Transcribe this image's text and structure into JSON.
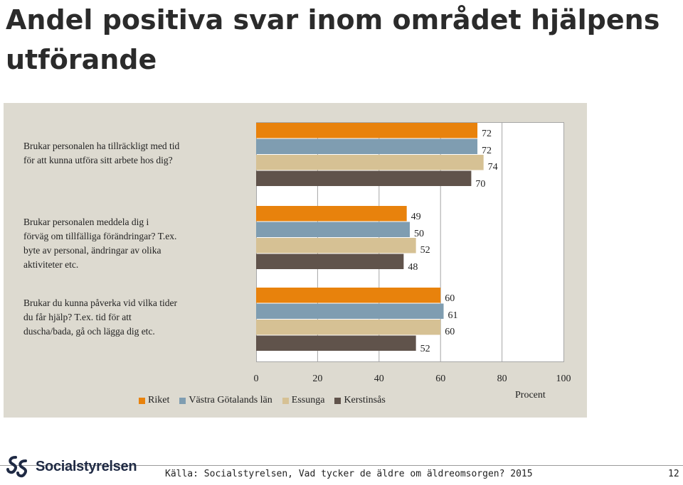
{
  "title": "Andel positiva svar inom området hjälpens utförande",
  "chart_data": {
    "type": "bar",
    "orientation": "horizontal",
    "categories": [
      "Brukar personalen ha tillräckligt med tid\nför att kunna utföra sitt arbete hos dig?",
      "Brukar personalen meddela dig i\nförväg om tillfälliga förändringar? T.ex.\nbyte av personal, ändringar av olika\naktiviteter etc.",
      "Brukar du kunna påverka vid vilka tider\ndu får hjälp? T.ex. tid för att\nduscha/bada, gå och lägga dig etc."
    ],
    "series": [
      {
        "name": "Riket",
        "color": "#e8820c",
        "values": [
          72,
          49,
          60
        ]
      },
      {
        "name": "Västra Götalands län",
        "color": "#7f9db1",
        "values": [
          72,
          50,
          61
        ]
      },
      {
        "name": "Essunga",
        "color": "#d6c194",
        "values": [
          74,
          52,
          60
        ]
      },
      {
        "name": "Kerstinsås",
        "color": "#60534b",
        "values": [
          70,
          48,
          52
        ]
      }
    ],
    "xlim": [
      0,
      100
    ],
    "xticks": [
      "0",
      "20",
      "40",
      "60",
      "80",
      "100"
    ],
    "xlabel": "Procent",
    "grid": true,
    "legend_position": "bottom"
  },
  "footer": {
    "logo_text": "Socialstyrelsen",
    "source": "Källa: Socialstyrelsen, Vad tycker de äldre om äldreomsorgen? 2015",
    "page_number": "12"
  }
}
